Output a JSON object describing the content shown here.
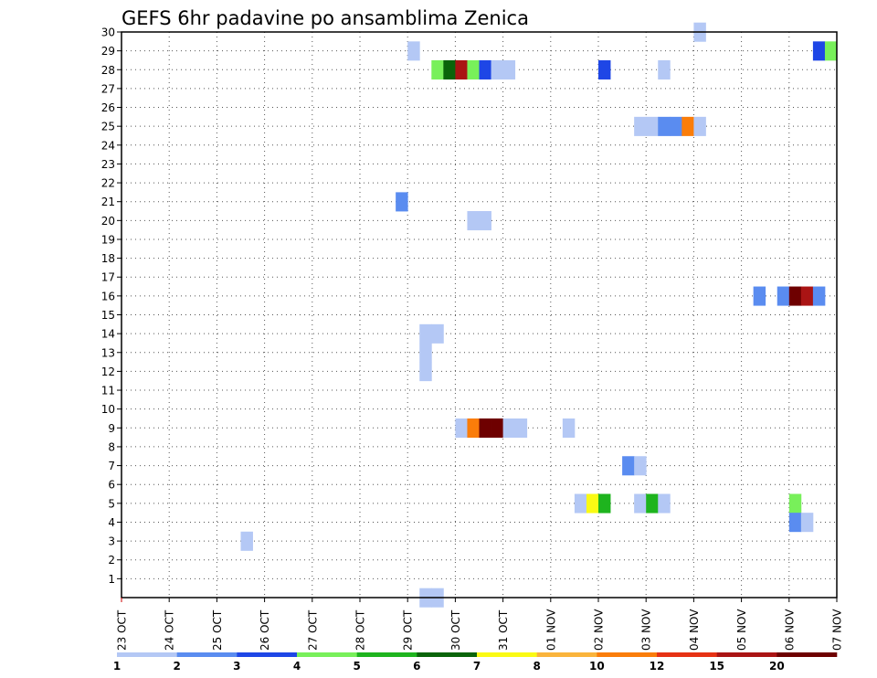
{
  "chart_data": {
    "type": "heatmap",
    "title": "GEFS 6hr padavine po ansamblima Zenica",
    "xlabel": "",
    "ylabel": "",
    "x_tick_labels": [
      "23 OCT",
      "24 OCT",
      "25 OCT",
      "26 OCT",
      "27 OCT",
      "28 OCT",
      "29 OCT",
      "30 OCT",
      "31 OCT",
      "01 NOV",
      "02 NOV",
      "03 NOV",
      "04 NOV",
      "05 NOV",
      "06 NOV",
      "07 NOV"
    ],
    "y_tick_labels": [
      "1",
      "2",
      "3",
      "4",
      "5",
      "6",
      "7",
      "8",
      "9",
      "10",
      "11",
      "12",
      "13",
      "14",
      "15",
      "16",
      "17",
      "18",
      "19",
      "20",
      "21",
      "22",
      "23",
      "24",
      "25",
      "26",
      "27",
      "28",
      "29",
      "30"
    ],
    "x_range_days": [
      0,
      15
    ],
    "y_range": [
      0,
      30
    ],
    "grid": true,
    "legend": {
      "placement": "bottom",
      "colors": [
        "#b4c8f5",
        "#5a8cf0",
        "#1e46e6",
        "#78f05a",
        "#1eb41e",
        "#0a640a",
        "#fafa14",
        "#fab43c",
        "#fa7d0a",
        "#e63214",
        "#aa1414",
        "#6e0000"
      ],
      "labels": [
        "1",
        "2",
        "3",
        "4",
        "5",
        "6",
        "7",
        "8",
        "10",
        "12",
        "15",
        "20"
      ]
    },
    "cell_units": "x = days since 23 OCT 00z, width 0.25 day (6 h); y = ensemble member",
    "cells": [
      {
        "x": 2.5,
        "y": 3,
        "v": 1
      },
      {
        "x": 5.75,
        "y": 21,
        "v": 2
      },
      {
        "x": 6.0,
        "y": 29,
        "v": 1
      },
      {
        "x": 6.25,
        "y": 0,
        "v": 1
      },
      {
        "x": 6.5,
        "y": 0,
        "v": 1
      },
      {
        "x": 6.25,
        "y": 12,
        "v": 1
      },
      {
        "x": 6.25,
        "y": 13,
        "v": 1
      },
      {
        "x": 6.25,
        "y": 14,
        "v": 1
      },
      {
        "x": 6.5,
        "y": 14,
        "v": 1
      },
      {
        "x": 6.5,
        "y": 28,
        "v": 4
      },
      {
        "x": 6.75,
        "y": 28,
        "v": 6
      },
      {
        "x": 7.0,
        "y": 9,
        "v": 1
      },
      {
        "x": 7.0,
        "y": 28,
        "v": 15
      },
      {
        "x": 7.25,
        "y": 9,
        "v": 10
      },
      {
        "x": 7.25,
        "y": 20,
        "v": 1
      },
      {
        "x": 7.5,
        "y": 20,
        "v": 1
      },
      {
        "x": 7.25,
        "y": 28,
        "v": 4
      },
      {
        "x": 7.5,
        "y": 9,
        "v": 20
      },
      {
        "x": 7.75,
        "y": 9,
        "v": 20
      },
      {
        "x": 7.5,
        "y": 28,
        "v": 3
      },
      {
        "x": 7.75,
        "y": 28,
        "v": 1
      },
      {
        "x": 8.0,
        "y": 9,
        "v": 1
      },
      {
        "x": 8.25,
        "y": 9,
        "v": 1
      },
      {
        "x": 8.0,
        "y": 28,
        "v": 1
      },
      {
        "x": 9.25,
        "y": 9,
        "v": 1
      },
      {
        "x": 9.5,
        "y": 5,
        "v": 1
      },
      {
        "x": 9.75,
        "y": 5,
        "v": 7
      },
      {
        "x": 10.0,
        "y": 5,
        "v": 5
      },
      {
        "x": 10.0,
        "y": 28,
        "v": 3
      },
      {
        "x": 10.5,
        "y": 7,
        "v": 2
      },
      {
        "x": 10.75,
        "y": 7,
        "v": 1
      },
      {
        "x": 10.75,
        "y": 5,
        "v": 1
      },
      {
        "x": 11.0,
        "y": 5,
        "v": 5
      },
      {
        "x": 11.25,
        "y": 5,
        "v": 1
      },
      {
        "x": 10.75,
        "y": 25,
        "v": 1
      },
      {
        "x": 11.0,
        "y": 25,
        "v": 1
      },
      {
        "x": 11.25,
        "y": 25,
        "v": 2
      },
      {
        "x": 11.5,
        "y": 25,
        "v": 2
      },
      {
        "x": 11.75,
        "y": 25,
        "v": 10
      },
      {
        "x": 12.0,
        "y": 25,
        "v": 1
      },
      {
        "x": 11.25,
        "y": 28,
        "v": 1
      },
      {
        "x": 12.0,
        "y": 30,
        "v": 1
      },
      {
        "x": 13.25,
        "y": 16,
        "v": 2
      },
      {
        "x": 13.75,
        "y": 16,
        "v": 2
      },
      {
        "x": 14.0,
        "y": 16,
        "v": 20
      },
      {
        "x": 14.25,
        "y": 16,
        "v": 15
      },
      {
        "x": 14.5,
        "y": 16,
        "v": 2
      },
      {
        "x": 14.0,
        "y": 5,
        "v": 4
      },
      {
        "x": 14.0,
        "y": 4,
        "v": 2
      },
      {
        "x": 14.25,
        "y": 4,
        "v": 1
      },
      {
        "x": 14.5,
        "y": 29,
        "v": 3
      },
      {
        "x": 14.75,
        "y": 29,
        "v": 4
      }
    ]
  }
}
